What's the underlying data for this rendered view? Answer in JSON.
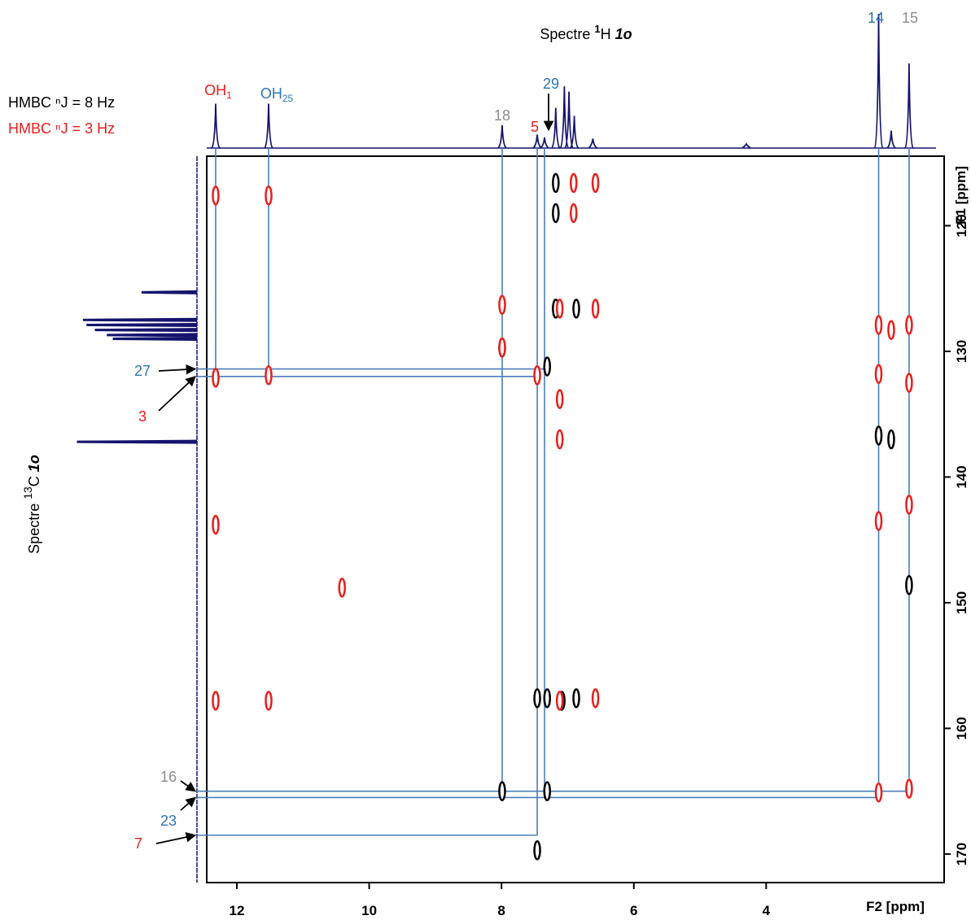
{
  "chart_data": {
    "type": "hmbc",
    "title": {
      "prefix": "Spectre",
      "sup": "1",
      "nucleus": "H",
      "compound": "1o"
    },
    "side_title": {
      "prefix": "Spectre",
      "sup": "13",
      "nucleus": "C",
      "compound": "1o"
    },
    "xlabel": "F2 [ppm]",
    "ylabel": "F1 [ppm]",
    "xlim": [
      12.455,
      1.31
    ],
    "ylim": [
      114.47,
      172.27
    ],
    "xticks": [
      12,
      10,
      8,
      6,
      4
    ],
    "yticks": [
      120,
      130,
      140,
      150,
      160,
      170
    ],
    "series": [
      {
        "name": "HMBC ⁿJ = 8 Hz",
        "color": "#000000",
        "x": [
          7.18,
          7.18,
          7.18,
          7.99,
          7.99,
          7.31,
          7.31,
          7.31,
          7.46,
          7.46,
          6.87,
          6.87,
          7.09,
          2.3,
          2.11,
          1.84
        ],
        "values": [
          116.6,
          119.0,
          126.6,
          129.7,
          165.0,
          131.2,
          165.0,
          157.6,
          157.6,
          169.7,
          126.6,
          157.6,
          157.8,
          136.7,
          137.0,
          148.6
        ]
      },
      {
        "name": "HMBC ⁿJ = 3 Hz",
        "color": "#e8201c",
        "x": [
          12.32,
          12.32,
          12.32,
          12.32,
          11.52,
          11.52,
          11.52,
          7.99,
          7.99,
          7.46,
          7.12,
          7.12,
          7.12,
          7.12,
          6.91,
          6.91,
          6.58,
          6.58,
          6.58,
          2.3,
          2.3,
          2.3,
          2.3,
          2.11,
          1.84,
          1.84,
          1.84,
          1.84,
          10.41
        ],
        "values": [
          117.6,
          132.1,
          143.8,
          157.8,
          117.6,
          131.9,
          157.8,
          126.3,
          129.7,
          131.9,
          126.6,
          133.8,
          137.0,
          157.8,
          116.6,
          119.0,
          116.6,
          126.6,
          157.6,
          127.9,
          131.8,
          143.5,
          165.1,
          128.3,
          127.9,
          132.5,
          142.2,
          164.8,
          148.8
        ]
      }
    ],
    "h_spectrum": {
      "color": "#14146e",
      "x": [
        12.32,
        11.52,
        7.99,
        7.46,
        7.35,
        7.18,
        7.05,
        6.98,
        6.9,
        6.62,
        4.3,
        2.3,
        2.11,
        1.84
      ],
      "values": [
        0.33,
        0.33,
        0.17,
        0.1,
        0.08,
        0.3,
        0.46,
        0.42,
        0.24,
        0.07,
        0.03,
        1.0,
        0.13,
        0.63
      ]
    },
    "c_spectrum": {
      "color": "#14146e",
      "ppm": [
        125.3,
        127.5,
        127.9,
        128.3,
        128.7,
        129.0,
        137.2
      ],
      "values": [
        0.46,
        0.95,
        0.92,
        0.85,
        0.75,
        0.7,
        1.0
      ]
    },
    "h_labels": [
      {
        "text": "OH",
        "sub": "1",
        "color": "#e8201c",
        "ppm": 12.32,
        "to": 132.0
      },
      {
        "text": "OH",
        "sub": "25",
        "color": "#2e75b6",
        "ppm": 11.52,
        "to": 132.0
      },
      {
        "text": "18",
        "color": "#8c8c8c",
        "ppm": 7.99,
        "to": 165.5
      },
      {
        "text": "5",
        "color": "#e8201c",
        "ppm": 7.46,
        "to": 168.5
      },
      {
        "text": "29",
        "color": "#2e75b6",
        "ppm": 7.35,
        "to": 165.5
      },
      {
        "text": "14",
        "color": "#2e75b6",
        "ppm": 2.3,
        "to": 165.5
      },
      {
        "text": "15",
        "color": "#8c8c8c",
        "ppm": 1.84,
        "to": 165.0
      }
    ],
    "c_labels": [
      {
        "text": "27",
        "color": "#2e75b6",
        "ppm": 131.4,
        "to": 7.35
      },
      {
        "text": "3",
        "color": "#e8201c",
        "ppm": 132.0,
        "to": 7.46
      },
      {
        "text": "16",
        "color": "#8c8c8c",
        "ppm": 165.0,
        "to": 1.84
      },
      {
        "text": "23",
        "color": "#2e75b6",
        "ppm": 165.5,
        "to": 2.3
      },
      {
        "text": "7",
        "color": "#e8201c",
        "ppm": 168.5,
        "to": 7.46
      }
    ]
  }
}
